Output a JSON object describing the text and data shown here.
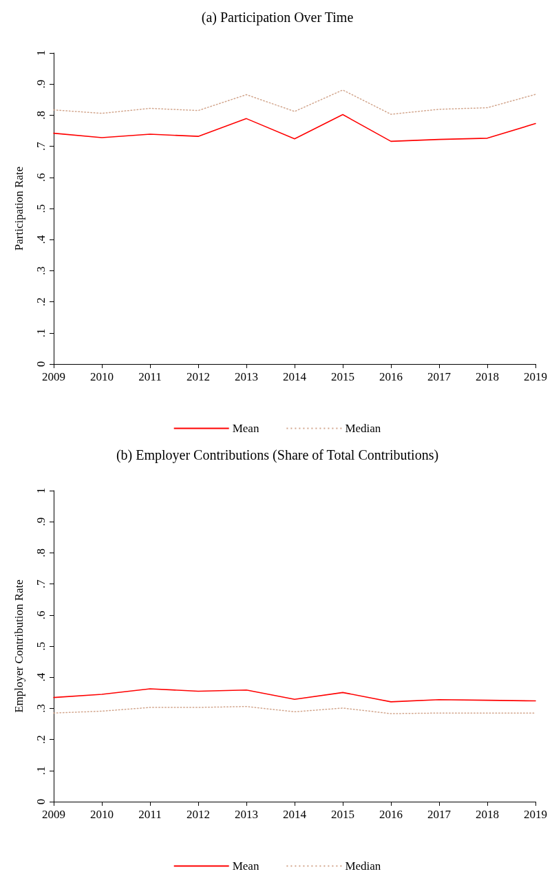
{
  "chart_data": [
    {
      "type": "line",
      "title": "(a) Participation Over Time",
      "ylabel": "Participation Rate",
      "categories": [
        "2009",
        "2010",
        "2011",
        "2012",
        "2013",
        "2014",
        "2015",
        "2016",
        "2017",
        "2018",
        "2019"
      ],
      "series": [
        {
          "name": "Mean",
          "color": "#ff0000",
          "line_style": "solid",
          "values": [
            0.742,
            0.728,
            0.739,
            0.732,
            0.789,
            0.724,
            0.802,
            0.716,
            0.722,
            0.726,
            0.773
          ]
        },
        {
          "name": "Median",
          "color": "#d2a58c",
          "line_style": "dotted",
          "values": [
            0.817,
            0.806,
            0.822,
            0.815,
            0.866,
            0.812,
            0.881,
            0.803,
            0.819,
            0.824,
            0.867
          ]
        }
      ],
      "ylim": [
        0,
        1
      ],
      "yticks": [
        {
          "value": 0,
          "label": "0"
        },
        {
          "value": 0.1,
          "label": ".1"
        },
        {
          "value": 0.2,
          "label": ".2"
        },
        {
          "value": 0.3,
          "label": ".3"
        },
        {
          "value": 0.4,
          "label": ".4"
        },
        {
          "value": 0.5,
          "label": ".5"
        },
        {
          "value": 0.6,
          "label": ".6"
        },
        {
          "value": 0.7,
          "label": ".7"
        },
        {
          "value": 0.8,
          "label": ".8"
        },
        {
          "value": 0.9,
          "label": ".9"
        },
        {
          "value": 1,
          "label": "1"
        }
      ],
      "grid": false,
      "legend": "bottom",
      "marker": "none"
    },
    {
      "type": "line",
      "title": "(b) Employer Contributions (Share of Total Contributions)",
      "ylabel": "Employer Contribution Rate",
      "categories": [
        "2009",
        "2010",
        "2011",
        "2012",
        "2013",
        "2014",
        "2015",
        "2016",
        "2017",
        "2018",
        "2019"
      ],
      "series": [
        {
          "name": "Mean",
          "color": "#ff0000",
          "line_style": "solid",
          "values": [
            0.335,
            0.345,
            0.363,
            0.355,
            0.359,
            0.329,
            0.351,
            0.321,
            0.328,
            0.326,
            0.324
          ]
        },
        {
          "name": "Median",
          "color": "#d2a58c",
          "line_style": "dotted",
          "values": [
            0.285,
            0.291,
            0.303,
            0.303,
            0.306,
            0.289,
            0.301,
            0.283,
            0.285,
            0.285,
            0.285
          ]
        }
      ],
      "ylim": [
        0,
        1
      ],
      "yticks": [
        {
          "value": 0,
          "label": "0"
        },
        {
          "value": 0.1,
          "label": ".1"
        },
        {
          "value": 0.2,
          "label": ".2"
        },
        {
          "value": 0.3,
          "label": ".3"
        },
        {
          "value": 0.4,
          "label": ".4"
        },
        {
          "value": 0.5,
          "label": ".5"
        },
        {
          "value": 0.6,
          "label": ".6"
        },
        {
          "value": 0.7,
          "label": ".7"
        },
        {
          "value": 0.8,
          "label": ".8"
        },
        {
          "value": 0.9,
          "label": ".9"
        },
        {
          "value": 1,
          "label": "1"
        }
      ],
      "grid": false,
      "legend": "bottom",
      "marker": "none"
    }
  ]
}
